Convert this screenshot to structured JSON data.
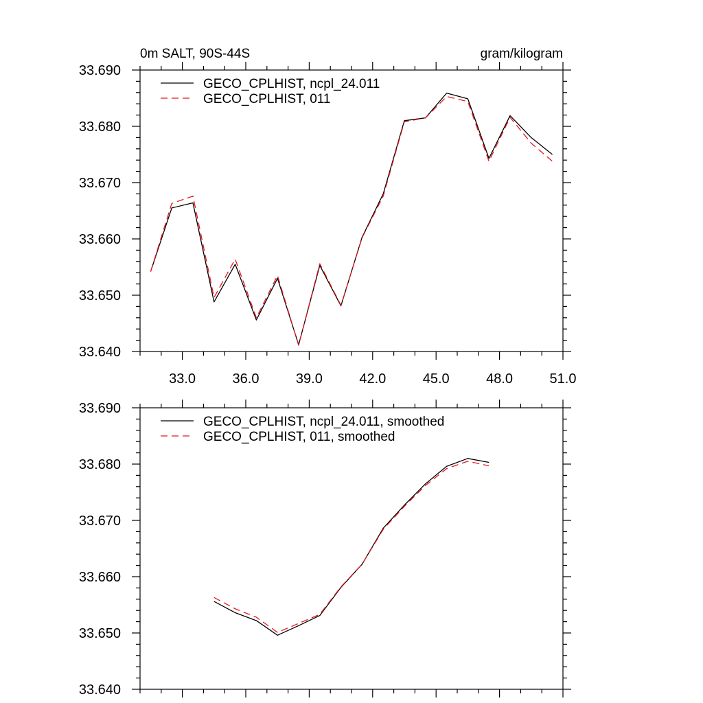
{
  "colors": {
    "run_a": "#000000",
    "run_b": "#e8141e",
    "background": "#ffffff"
  },
  "chart_data": [
    {
      "type": "line",
      "title": "0m SALT, 90S-44S",
      "units": "gram/kilogram",
      "xlim": [
        31,
        51
      ],
      "ylim": [
        33.64,
        33.69
      ],
      "grid": false,
      "legend_position": "top-left",
      "x_tick_labels": [
        "33.0",
        "36.0",
        "39.0",
        "42.0",
        "45.0",
        "48.0",
        "51.0"
      ],
      "y_tick_labels": [
        "33.690",
        "33.680",
        "33.670",
        "33.660",
        "33.650",
        "33.640"
      ],
      "x": [
        31.5,
        32.5,
        33.5,
        34.5,
        35.5,
        36.5,
        37.5,
        38.5,
        39.5,
        40.5,
        41.5,
        42.5,
        43.5,
        44.5,
        45.5,
        46.5,
        47.5,
        48.5,
        49.5,
        50.5
      ],
      "series": [
        {
          "name": "GECO_CPLHIST, ncpl_24.011",
          "style": "solid",
          "values": [
            33.6542,
            33.6655,
            33.6664,
            33.6488,
            33.6555,
            33.6456,
            33.653,
            33.6412,
            33.6553,
            33.6481,
            33.6603,
            33.668,
            33.681,
            33.6815,
            33.6859,
            33.6849,
            33.6743,
            33.6819,
            33.678,
            33.675
          ]
        },
        {
          "name": "GECO_CPLHIST, 011",
          "style": "dashed",
          "values": [
            33.6542,
            33.6663,
            33.6676,
            33.6496,
            33.6564,
            33.646,
            33.6535,
            33.6411,
            33.6556,
            33.6482,
            33.6602,
            33.6676,
            33.6808,
            33.6815,
            33.6853,
            33.6844,
            33.6738,
            33.6816,
            33.677,
            33.6738
          ]
        }
      ]
    },
    {
      "type": "line",
      "xlim": [
        31,
        51
      ],
      "ylim": [
        33.64,
        33.69
      ],
      "grid": false,
      "legend_position": "top-left",
      "y_tick_labels": [
        "33.690",
        "33.680",
        "33.670",
        "33.660",
        "33.650",
        "33.640"
      ],
      "x": [
        34.5,
        35.5,
        36.5,
        37.5,
        38.5,
        39.5,
        40.5,
        41.5,
        42.5,
        43.5,
        44.5,
        45.5,
        46.5,
        47.5
      ],
      "series": [
        {
          "name": "GECO_CPLHIST, ncpl_24.011, smoothed",
          "style": "solid",
          "values": [
            33.6556,
            33.6536,
            33.6522,
            33.6496,
            33.6513,
            33.6531,
            33.6581,
            33.6622,
            33.6686,
            33.6727,
            33.6765,
            33.6796,
            33.681,
            33.6803
          ]
        },
        {
          "name": "GECO_CPLHIST, 011, smoothed",
          "style": "dashed",
          "values": [
            33.6563,
            33.6543,
            33.6528,
            33.6501,
            33.6517,
            33.6533,
            33.6582,
            33.6622,
            33.6684,
            33.6725,
            33.6762,
            33.6792,
            33.6805,
            33.6797
          ]
        }
      ]
    }
  ]
}
